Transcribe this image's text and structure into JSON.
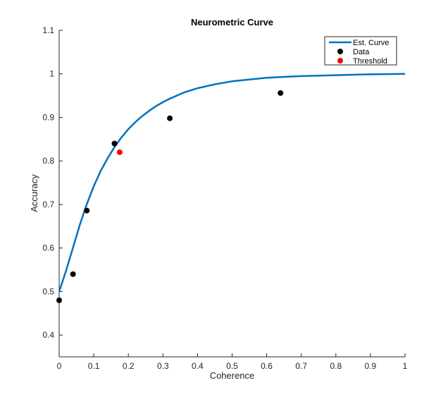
{
  "chart_data": {
    "type": "line",
    "title": "Neurometric Curve",
    "xlabel": "Coherence",
    "ylabel": "Accuracy",
    "xlim": [
      0,
      1
    ],
    "ylim": [
      0.35,
      1.1
    ],
    "xticks": [
      0,
      0.1,
      0.2,
      0.3,
      0.4,
      0.5,
      0.6,
      0.7,
      0.8,
      0.9,
      1
    ],
    "xtick_labels": [
      "0",
      "0.1",
      "0.2",
      "0.3",
      "0.4",
      "0.5",
      "0.6",
      "0.7",
      "0.8",
      "0.9",
      "1"
    ],
    "yticks": [
      0.4,
      0.5,
      0.6,
      0.7,
      0.8,
      0.9,
      1,
      1.1
    ],
    "ytick_labels": [
      "0.4",
      "0.5",
      "0.6",
      "0.7",
      "0.8",
      "0.9",
      "1",
      "1.1"
    ],
    "grid": false,
    "legend_position": "top-right",
    "series": [
      {
        "name": "Est. Curve",
        "kind": "line",
        "color": "#0072BD",
        "x": [
          0,
          0.02,
          0.04,
          0.06,
          0.08,
          0.1,
          0.12,
          0.14,
          0.16,
          0.18,
          0.2,
          0.22,
          0.24,
          0.26,
          0.28,
          0.3,
          0.32,
          0.34,
          0.36,
          0.38,
          0.4,
          0.45,
          0.5,
          0.55,
          0.6,
          0.65,
          0.7,
          0.8,
          0.9,
          1.0
        ],
        "values": [
          0.5,
          0.548,
          0.601,
          0.654,
          0.701,
          0.742,
          0.777,
          0.806,
          0.832,
          0.854,
          0.873,
          0.889,
          0.903,
          0.915,
          0.926,
          0.935,
          0.943,
          0.95,
          0.957,
          0.962,
          0.967,
          0.976,
          0.983,
          0.987,
          0.991,
          0.993,
          0.995,
          0.997,
          0.999,
          1.0
        ]
      },
      {
        "name": "Data",
        "kind": "scatter",
        "color": "#000000",
        "x": [
          0,
          0.04,
          0.08,
          0.16,
          0.32,
          0.64
        ],
        "values": [
          0.48,
          0.54,
          0.686,
          0.84,
          0.898,
          0.956
        ]
      },
      {
        "name": "Threshold",
        "kind": "scatter",
        "color": "#FF0000",
        "x": [
          0.175
        ],
        "values": [
          0.82
        ]
      }
    ]
  }
}
